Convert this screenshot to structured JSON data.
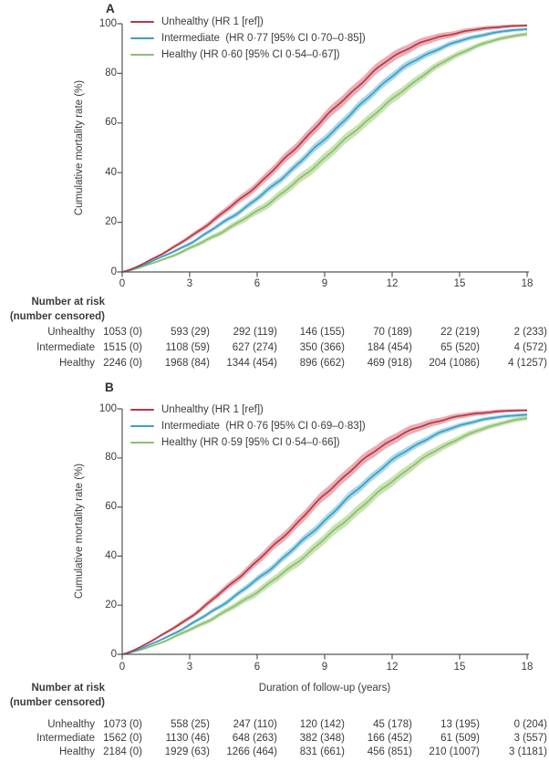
{
  "figure": {
    "panels": [
      {
        "label": "A",
        "risk_table": {
          "header_line1": "Number at risk",
          "header_line2": "(number censored)",
          "rows": [
            {
              "label": "Unhealthy",
              "values": [
                "1053 (0)",
                "593 (29)",
                "292 (119)",
                "146 (155)",
                "70 (189)",
                "22 (219)",
                "2 (233)"
              ]
            },
            {
              "label": "Intermediate",
              "values": [
                "1515 (0)",
                "1108 (59)",
                "627 (274)",
                "350 (366)",
                "184 (454)",
                "65 (520)",
                "4 (572)"
              ]
            },
            {
              "label": "Healthy",
              "values": [
                "2246 (0)",
                "1968 (84)",
                "1344 (454)",
                "896 (662)",
                "469 (918)",
                "204 (1086)",
                "4 (1257)"
              ]
            }
          ]
        }
      },
      {
        "label": "B",
        "risk_table": {
          "header_line1": "Number at risk",
          "header_line2": "(number censored)",
          "rows": [
            {
              "label": "Unhealthy",
              "values": [
                "1073 (0)",
                "558 (25)",
                "247 (110)",
                "120 (142)",
                "45 (178)",
                "13 (195)",
                "0 (204)"
              ]
            },
            {
              "label": "Intermediate",
              "values": [
                "1562 (0)",
                "1130 (46)",
                "648 (263)",
                "382 (348)",
                "166 (452)",
                "61 (509)",
                "3 (557)"
              ]
            },
            {
              "label": "Healthy",
              "values": [
                "2184 (0)",
                "1929 (63)",
                "1266 (464)",
                "831 (661)",
                "456 (851)",
                "210 (1007)",
                "3 (1181)"
              ]
            }
          ]
        }
      }
    ]
  },
  "chart_data": [
    {
      "panel": "A",
      "type": "line",
      "title": "",
      "xlabel": "",
      "ylabel": "Cumulative mortality rate (%)",
      "xlim": [
        0,
        18
      ],
      "ylim": [
        0,
        100
      ],
      "x_ticks": [
        0,
        3,
        6,
        9,
        12,
        15,
        18
      ],
      "y_ticks": [
        0,
        20,
        40,
        60,
        80,
        100
      ],
      "grid": false,
      "legend_position": "top-left",
      "x": [
        0,
        1.5,
        3,
        4.5,
        6,
        7.5,
        9,
        10.5,
        12,
        13.5,
        15,
        16.5,
        18
      ],
      "series": [
        {
          "name": "Unhealthy (HR 1 [ref])",
          "color": "#b13a4a",
          "band_color": "#edacb4",
          "y": [
            0,
            6,
            14,
            24,
            35,
            48,
            62,
            75,
            86.5,
            93,
            96.5,
            98.5,
            99.3
          ],
          "ci": [
            0.1,
            0.5,
            0.9,
            1.3,
            1.7,
            2.0,
            2.2,
            2.2,
            2.0,
            1.6,
            1.1,
            0.8,
            0.5
          ]
        },
        {
          "name": "Intermediate  (HR 0·77 [95% CI 0·70–0·85])",
          "color": "#3e9dc3",
          "band_color": "#a8d8ea",
          "y": [
            0,
            5,
            11.5,
            20,
            29.5,
            41,
            53.5,
            66.5,
            79,
            87.5,
            93,
            96.3,
            97.8
          ],
          "ci": [
            0.1,
            0.4,
            0.7,
            1.0,
            1.3,
            1.5,
            1.7,
            1.7,
            1.6,
            1.3,
            1.0,
            0.8,
            0.6
          ]
        },
        {
          "name": "Healthy (HR 0·60 [95% CI 0·54–0·67])",
          "color": "#8cbc74",
          "band_color": "#c8e4b2",
          "y": [
            0,
            4,
            9.5,
            16.5,
            24.5,
            34.5,
            46,
            58,
            69.5,
            80,
            88,
            93.2,
            95.8
          ],
          "ci": [
            0.1,
            0.4,
            0.8,
            1.1,
            1.5,
            1.8,
            2.0,
            2.0,
            1.9,
            1.6,
            1.2,
            0.9,
            0.8
          ]
        }
      ]
    },
    {
      "panel": "B",
      "type": "line",
      "title": "",
      "xlabel": "Duration of follow-up (years)",
      "ylabel": "Cumulative mortality rate (%)",
      "xlim": [
        0,
        18
      ],
      "ylim": [
        0,
        100
      ],
      "x_ticks": [
        0,
        3,
        6,
        9,
        12,
        15,
        18
      ],
      "y_ticks": [
        0,
        20,
        40,
        60,
        80,
        100
      ],
      "grid": false,
      "legend_position": "top-left",
      "x": [
        0,
        1.5,
        3,
        4.5,
        6,
        7.5,
        9,
        10.5,
        12,
        13.5,
        15,
        16.5,
        18
      ],
      "series": [
        {
          "name": "Unhealthy (HR 1 [ref])",
          "color": "#b13a4a",
          "band_color": "#edacb4",
          "y": [
            0,
            6.5,
            15,
            26,
            38,
            51,
            65,
            77.5,
            87.5,
            93.5,
            97,
            98.8,
            99.4
          ],
          "ci": [
            0.1,
            0.5,
            0.9,
            1.3,
            1.7,
            2.0,
            2.2,
            2.2,
            2.0,
            1.6,
            1.1,
            0.8,
            0.5
          ]
        },
        {
          "name": "Intermediate  (HR 0·76 [95% CI 0·69–0·83])",
          "color": "#3e9dc3",
          "band_color": "#a8d8ea",
          "y": [
            0,
            5,
            12,
            20.5,
            30.5,
            42,
            54.5,
            67.5,
            79,
            87.5,
            93.2,
            96.3,
            97.6
          ],
          "ci": [
            0.1,
            0.4,
            0.7,
            1.0,
            1.3,
            1.5,
            1.7,
            1.7,
            1.6,
            1.3,
            1.0,
            0.8,
            0.7
          ]
        },
        {
          "name": "Healthy (HR 0·59 [95% CI 0·54–0·66])",
          "color": "#8cbc74",
          "band_color": "#c8e4b2",
          "y": [
            0,
            4,
            10,
            17,
            25.5,
            35.5,
            47,
            59,
            70.5,
            80.5,
            88,
            93.2,
            96.2
          ],
          "ci": [
            0.1,
            0.4,
            0.8,
            1.1,
            1.5,
            1.8,
            2.0,
            2.1,
            2.0,
            1.7,
            1.3,
            1.0,
            0.9
          ]
        }
      ]
    }
  ]
}
